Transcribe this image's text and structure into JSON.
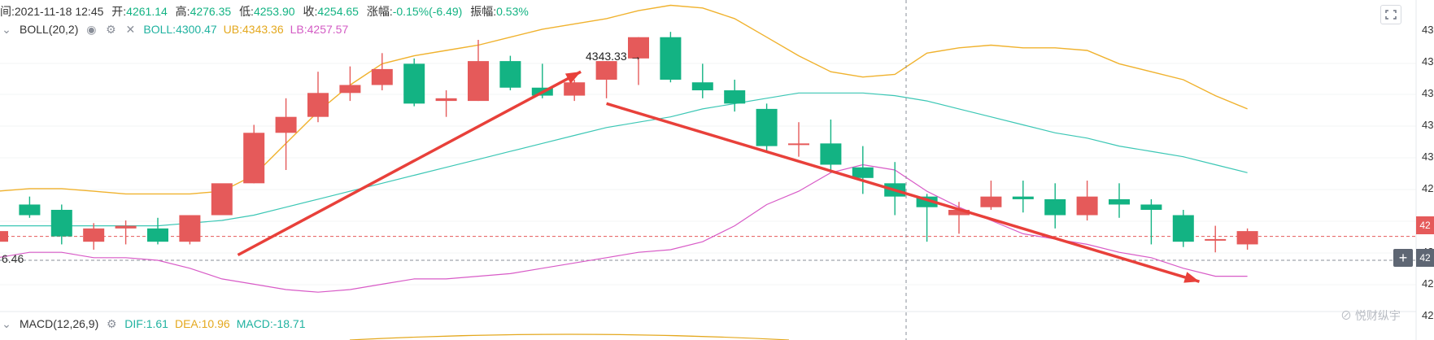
{
  "header": {
    "time_label": "间:2021-11-18 12:45",
    "open_label": "开:",
    "open": "4261.14",
    "high_label": "高:",
    "high": "4276.35",
    "low_label": "低:",
    "low": "4253.90",
    "close_label": "收:",
    "close": "4254.65",
    "chg_label": "涨幅:",
    "chg": "-0.15%(-6.49)",
    "amp_label": "振幅:",
    "amp": "0.53%"
  },
  "boll": {
    "name": "BOLL(20,2)",
    "mid_label": "BOLL:4300.47",
    "ub_label": "UB:4343.36",
    "lb_label": "LB:4257.57"
  },
  "macd": {
    "name": "MACD(12,26,9)",
    "dif_label": "DIF:1.61",
    "dea_label": "DEA:10.96",
    "macd_label": "MACD:-18.71"
  },
  "peak_label": "4343.33 →",
  "left_price_label": "6.46",
  "right_axis": {
    "tick_labels": [
      "43",
      "43",
      "43",
      "43",
      "43",
      "42",
      "42",
      "42",
      "42",
      "42"
    ],
    "current_tag": "42",
    "hover_tag": "42",
    "plus": "+"
  },
  "watermark": "⊘ 悦财纵宇",
  "colors": {
    "up": "#13b383",
    "down": "#e55a5a",
    "ub": "#f0b22e",
    "mid": "#3cc7b5",
    "lb": "#d85bc7",
    "arrow": "#e8403a"
  },
  "chart_data": {
    "type": "candlestick",
    "interval": "15min",
    "ylim": [
      4229,
      4357
    ],
    "candles": [
      {
        "o": 4266,
        "h": 4272,
        "l": 4263,
        "c": 4270
      },
      {
        "o": 4280,
        "h": 4283,
        "l": 4275,
        "c": 4276
      },
      {
        "o": 4278,
        "h": 4280,
        "l": 4265,
        "c": 4268
      },
      {
        "o": 4266,
        "h": 4273,
        "l": 4263,
        "c": 4271
      },
      {
        "o": 4271,
        "h": 4274,
        "l": 4265,
        "c": 4272
      },
      {
        "o": 4271,
        "h": 4275,
        "l": 4265,
        "c": 4266
      },
      {
        "o": 4266,
        "h": 4276,
        "l": 4265,
        "c": 4276
      },
      {
        "o": 4276,
        "h": 4287,
        "l": 4276,
        "c": 4288
      },
      {
        "o": 4288,
        "h": 4310,
        "l": 4288,
        "c": 4307
      },
      {
        "o": 4307,
        "h": 4320,
        "l": 4293,
        "c": 4313
      },
      {
        "o": 4313,
        "h": 4330,
        "l": 4311,
        "c": 4322
      },
      {
        "o": 4322,
        "h": 4332,
        "l": 4319,
        "c": 4325
      },
      {
        "o": 4325,
        "h": 4337,
        "l": 4323,
        "c": 4331
      },
      {
        "o": 4333,
        "h": 4335,
        "l": 4317,
        "c": 4318
      },
      {
        "o": 4319,
        "h": 4323,
        "l": 4313,
        "c": 4320
      },
      {
        "o": 4319,
        "h": 4342,
        "l": 4319,
        "c": 4334
      },
      {
        "o": 4334,
        "h": 4336,
        "l": 4323,
        "c": 4324
      },
      {
        "o": 4324,
        "h": 4333,
        "l": 4320,
        "c": 4321
      },
      {
        "o": 4321,
        "h": 4327,
        "l": 4319,
        "c": 4326
      },
      {
        "o": 4327,
        "h": 4334,
        "l": 4320,
        "c": 4334
      },
      {
        "o": 4335,
        "h": 4343,
        "l": 4325,
        "c": 4343
      },
      {
        "o": 4343,
        "h": 4345,
        "l": 4326,
        "c": 4327
      },
      {
        "o": 4326,
        "h": 4333,
        "l": 4320,
        "c": 4323
      },
      {
        "o": 4323,
        "h": 4327,
        "l": 4315,
        "c": 4318
      },
      {
        "o": 4316,
        "h": 4318,
        "l": 4300,
        "c": 4302
      },
      {
        "o": 4303,
        "h": 4311,
        "l": 4298,
        "c": 4303
      },
      {
        "o": 4303,
        "h": 4312,
        "l": 4292,
        "c": 4295
      },
      {
        "o": 4294,
        "h": 4302,
        "l": 4284,
        "c": 4290
      },
      {
        "o": 4288,
        "h": 4296,
        "l": 4276,
        "c": 4283
      },
      {
        "o": 4283,
        "h": 4284,
        "l": 4266,
        "c": 4279
      },
      {
        "o": 4276,
        "h": 4281,
        "l": 4269,
        "c": 4278
      },
      {
        "o": 4279,
        "h": 4289,
        "l": 4278,
        "c": 4283
      },
      {
        "o": 4283,
        "h": 4289,
        "l": 4277,
        "c": 4282
      },
      {
        "o": 4282,
        "h": 4288,
        "l": 4271,
        "c": 4276
      },
      {
        "o": 4276,
        "h": 4289,
        "l": 4274,
        "c": 4283
      },
      {
        "o": 4282,
        "h": 4288,
        "l": 4275,
        "c": 4280
      },
      {
        "o": 4280,
        "h": 4282,
        "l": 4265,
        "c": 4278
      },
      {
        "o": 4276,
        "h": 4278,
        "l": 4264,
        "c": 4266
      },
      {
        "o": 4267,
        "h": 4272,
        "l": 4262,
        "c": 4267
      },
      {
        "o": 4265,
        "h": 4271,
        "l": 4263,
        "c": 4270
      }
    ],
    "ub": [
      4285,
      4286,
      4286,
      4285,
      4284,
      4284,
      4284,
      4285,
      4291,
      4303,
      4315,
      4325,
      4333,
      4336,
      4338,
      4340,
      4343,
      4346,
      4348,
      4350,
      4353,
      4355,
      4354,
      4350,
      4343,
      4336,
      4330,
      4328,
      4329,
      4337,
      4339,
      4340,
      4339,
      4339,
      4338,
      4333,
      4330,
      4327,
      4321,
      4316
    ],
    "mid": [
      4272,
      4272,
      4272,
      4272,
      4272,
      4272,
      4273,
      4274,
      4276,
      4279,
      4282,
      4285,
      4288,
      4291,
      4294,
      4297,
      4300,
      4303,
      4306,
      4309,
      4311,
      4313,
      4316,
      4318,
      4320,
      4322,
      4322,
      4322,
      4321,
      4319,
      4316,
      4313,
      4310,
      4307,
      4305,
      4302,
      4300,
      4298,
      4295,
      4292
    ],
    "lb": [
      4260,
      4262,
      4262,
      4260,
      4260,
      4259,
      4256,
      4252,
      4250,
      4248,
      4247,
      4248,
      4250,
      4252,
      4252,
      4253,
      4254,
      4256,
      4258,
      4260,
      4262,
      4263,
      4266,
      4272,
      4280,
      4285,
      4292,
      4295,
      4293,
      4285,
      4279,
      4274,
      4269,
      4267,
      4265,
      4262,
      4260,
      4256,
      4253,
      4253
    ],
    "reference_lines": [
      {
        "style": "dashed",
        "color": "#e55a5a",
        "y": 4268
      },
      {
        "style": "dashed",
        "color": "#8a8f99",
        "y": 4259
      }
    ],
    "arrows": [
      {
        "from": [
          7.5,
          4261
        ],
        "to": [
          18.2,
          4330
        ],
        "color": "#e8403a"
      },
      {
        "from": [
          19.0,
          4318
        ],
        "to": [
          37.5,
          4251
        ],
        "color": "#e8403a"
      }
    ]
  }
}
